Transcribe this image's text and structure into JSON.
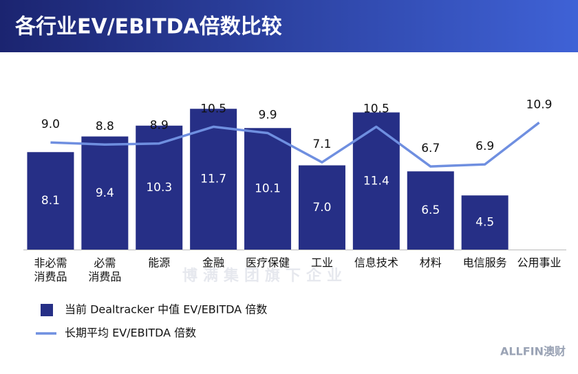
{
  "chart_data": {
    "type": "bar_line",
    "title": "各行业EV/EBITDA倍数比较",
    "categories": [
      "非必需\n消费品",
      "必需\n消费品",
      "能源",
      "金融",
      "医疗保健",
      "工业",
      "信息技术",
      "材料",
      "电信服务",
      "公用事业"
    ],
    "series": [
      {
        "name": "当前 Dealtracker 中值 EV/EBITDA 倍数",
        "type": "bar",
        "color": "#262f86",
        "values": [
          8.1,
          9.4,
          10.3,
          11.7,
          10.1,
          7.0,
          11.4,
          6.5,
          4.5,
          null
        ],
        "value_labels": [
          "8.1",
          "9.4",
          "10.3",
          "11.7",
          "10.1",
          "7.0",
          "11.4",
          "6.5",
          "4.5",
          null
        ]
      },
      {
        "name": "长期平均 EV/EBITDA 倍数",
        "type": "line",
        "color": "#6f8fe0",
        "values": [
          9.0,
          8.8,
          8.9,
          10.5,
          9.9,
          7.1,
          10.5,
          6.7,
          6.9,
          10.9
        ],
        "value_labels": [
          "9.0",
          "8.8",
          "8.9",
          "10.5",
          "9.9",
          "7.1",
          "10.5",
          "6.7",
          "6.9",
          "10.9"
        ]
      }
    ],
    "watermark": "博满集团旗下企业",
    "brand": "ALLFIN澳财"
  }
}
